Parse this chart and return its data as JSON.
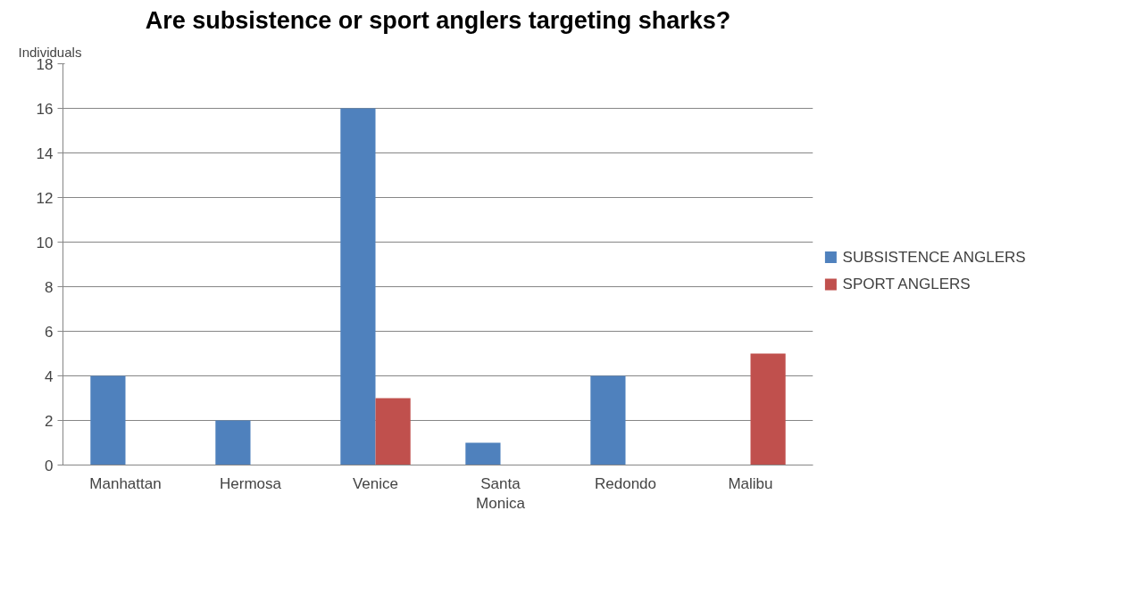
{
  "chart_data": {
    "type": "bar",
    "title": "Are subsistence or sport anglers targeting sharks?",
    "ylabel": "Individuals",
    "categories": [
      "Manhattan",
      "Hermosa",
      "Venice",
      "Santa Monica",
      "Redondo",
      "Malibu"
    ],
    "series": [
      {
        "name": "SUBSISTENCE ANGLERS",
        "color": "#4f81bd",
        "values": [
          4,
          2,
          16,
          1,
          4,
          0
        ]
      },
      {
        "name": "SPORT ANGLERS",
        "color": "#c0504d",
        "values": [
          0,
          0,
          3,
          0,
          0,
          5
        ]
      }
    ],
    "ylim": [
      0,
      18
    ],
    "yticks": [
      0,
      2,
      4,
      6,
      8,
      10,
      12,
      14,
      16,
      18
    ],
    "grid": "y",
    "legend": "right"
  }
}
